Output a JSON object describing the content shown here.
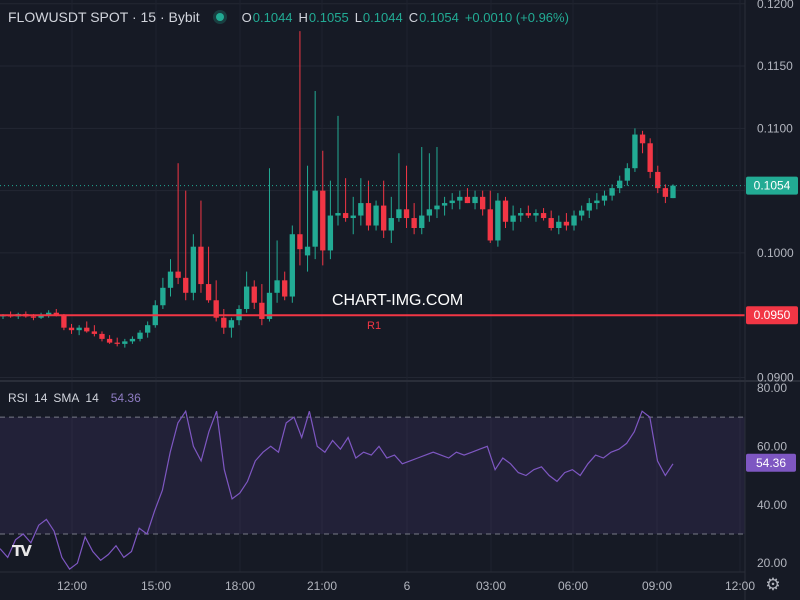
{
  "header": {
    "symbol": "FLOWUSDT SPOT · 15 · Bybit",
    "o_label": "O",
    "o_value": "0.1044",
    "h_label": "H",
    "h_value": "0.1055",
    "l_label": "L",
    "l_value": "0.1044",
    "c_label": "C",
    "c_value": "0.1054",
    "change": "+0.0010 (+0.96%)"
  },
  "watermark": "CHART-IMG.COM",
  "logo_text": "TV",
  "settings_icon": "gear-icon",
  "colors": {
    "up": "#22ab94",
    "down": "#f23645",
    "rsi": "#7e57c2",
    "resistance": "#f23645",
    "background": "#161a25"
  },
  "chart_data": [
    {
      "type": "candlestick",
      "title": "FLOWUSDT SPOT · 15 · Bybit",
      "y_axis": {
        "ticks": [
          "0.1200",
          "0.1150",
          "0.1100",
          "0.1050",
          "0.1000",
          "0.0950",
          "0.0900"
        ],
        "range": [
          0.0898,
          0.1203
        ]
      },
      "x_axis": {
        "ticks": [
          "12:00",
          "15:00",
          "18:00",
          "21:00",
          "6",
          "03:00",
          "06:00",
          "09:00",
          "12:00"
        ]
      },
      "last_price": {
        "value": 0.1054,
        "label": "0.1054"
      },
      "resistance": {
        "value": 0.095,
        "label": "0.0950",
        "name": "R1"
      },
      "candles_ohlc": [
        [
          0.0949,
          0.0951,
          0.0947,
          0.095
        ],
        [
          0.095,
          0.0953,
          0.0948,
          0.0949
        ],
        [
          0.0949,
          0.0952,
          0.0947,
          0.0951
        ],
        [
          0.0951,
          0.0953,
          0.0948,
          0.0949
        ],
        [
          0.0949,
          0.0951,
          0.0946,
          0.0948
        ],
        [
          0.0948,
          0.0952,
          0.0947,
          0.095
        ],
        [
          0.095,
          0.0954,
          0.0948,
          0.0952
        ],
        [
          0.0952,
          0.0955,
          0.0949,
          0.095
        ],
        [
          0.095,
          0.0951,
          0.0938,
          0.094
        ],
        [
          0.094,
          0.0943,
          0.0935,
          0.0938
        ],
        [
          0.0938,
          0.0942,
          0.0934,
          0.094
        ],
        [
          0.094,
          0.0945,
          0.0936,
          0.0937
        ],
        [
          0.0937,
          0.0942,
          0.0933,
          0.0935
        ],
        [
          0.0935,
          0.0937,
          0.0929,
          0.0931
        ],
        [
          0.0931,
          0.0934,
          0.0927,
          0.0928
        ],
        [
          0.0928,
          0.0932,
          0.0925,
          0.0927
        ],
        [
          0.0927,
          0.0931,
          0.0924,
          0.0929
        ],
        [
          0.0929,
          0.0933,
          0.0927,
          0.0931
        ],
        [
          0.0931,
          0.0938,
          0.0929,
          0.0936
        ],
        [
          0.0936,
          0.0945,
          0.0932,
          0.0942
        ],
        [
          0.0942,
          0.0962,
          0.094,
          0.0958
        ],
        [
          0.0958,
          0.098,
          0.0955,
          0.0972
        ],
        [
          0.0972,
          0.0995,
          0.0965,
          0.0985
        ],
        [
          0.0985,
          0.1072,
          0.0975,
          0.098
        ],
        [
          0.098,
          0.105,
          0.0962,
          0.0968
        ],
        [
          0.0968,
          0.1015,
          0.0962,
          0.1005
        ],
        [
          0.1005,
          0.1042,
          0.0968,
          0.0975
        ],
        [
          0.0975,
          0.1005,
          0.096,
          0.0962
        ],
        [
          0.0962,
          0.0978,
          0.0945,
          0.0948
        ],
        [
          0.0948,
          0.0955,
          0.0935,
          0.094
        ],
        [
          0.094,
          0.0948,
          0.0932,
          0.0946
        ],
        [
          0.0946,
          0.0958,
          0.0942,
          0.0955
        ],
        [
          0.0955,
          0.0985,
          0.0952,
          0.0973
        ],
        [
          0.0973,
          0.0978,
          0.0955,
          0.096
        ],
        [
          0.096,
          0.0975,
          0.0942,
          0.0947
        ],
        [
          0.0947,
          0.1068,
          0.0945,
          0.0968
        ],
        [
          0.0968,
          0.101,
          0.096,
          0.0978
        ],
        [
          0.0978,
          0.0985,
          0.0962,
          0.0965
        ],
        [
          0.0965,
          0.1022,
          0.096,
          0.1015
        ],
        [
          0.1015,
          0.1178,
          0.099,
          0.1003
        ],
        [
          0.0998,
          0.107,
          0.0985,
          0.1005
        ],
        [
          0.1005,
          0.113,
          0.0995,
          0.105
        ],
        [
          0.105,
          0.1082,
          0.099,
          0.1002
        ],
        [
          0.1002,
          0.1058,
          0.0995,
          0.103
        ],
        [
          0.103,
          0.111,
          0.1022,
          0.1032
        ],
        [
          0.1032,
          0.106,
          0.1025,
          0.1028
        ],
        [
          0.1028,
          0.1045,
          0.1015,
          0.103
        ],
        [
          0.103,
          0.106,
          0.1022,
          0.104
        ],
        [
          0.104,
          0.1058,
          0.1018,
          0.1022
        ],
        [
          0.1022,
          0.1042,
          0.1018,
          0.1038
        ],
        [
          0.1038,
          0.1058,
          0.1012,
          0.1018
        ],
        [
          0.1018,
          0.1045,
          0.1008,
          0.1028
        ],
        [
          0.1028,
          0.108,
          0.1025,
          0.1035
        ],
        [
          0.1035,
          0.107,
          0.102,
          0.1028
        ],
        [
          0.1028,
          0.104,
          0.1015,
          0.102
        ],
        [
          0.102,
          0.1085,
          0.1015,
          0.103
        ],
        [
          0.103,
          0.108,
          0.1025,
          0.1035
        ],
        [
          0.1035,
          0.1085,
          0.1028,
          0.1038
        ],
        [
          0.1038,
          0.1045,
          0.103,
          0.104
        ],
        [
          0.104,
          0.1048,
          0.1035,
          0.1042
        ],
        [
          0.1042,
          0.105,
          0.1035,
          0.1045
        ],
        [
          0.1045,
          0.1052,
          0.104,
          0.104
        ],
        [
          0.104,
          0.105,
          0.1035,
          0.1045
        ],
        [
          0.1045,
          0.105,
          0.103,
          0.1035
        ],
        [
          0.1035,
          0.105,
          0.1008,
          0.101
        ],
        [
          0.101,
          0.1048,
          0.1005,
          0.1042
        ],
        [
          0.1042,
          0.1045,
          0.102,
          0.1025
        ],
        [
          0.1025,
          0.1038,
          0.1018,
          0.103
        ],
        [
          0.103,
          0.1036,
          0.1025,
          0.1032
        ],
        [
          0.1032,
          0.1038,
          0.1028,
          0.103
        ],
        [
          0.103,
          0.1035,
          0.1025,
          0.1032
        ],
        [
          0.1032,
          0.1036,
          0.1026,
          0.1028
        ],
        [
          0.1028,
          0.1034,
          0.1018,
          0.102
        ],
        [
          0.102,
          0.103,
          0.1015,
          0.1025
        ],
        [
          0.1025,
          0.1032,
          0.1018,
          0.1022
        ],
        [
          0.1022,
          0.1034,
          0.1018,
          0.103
        ],
        [
          0.103,
          0.1038,
          0.1026,
          0.1034
        ],
        [
          0.1034,
          0.1044,
          0.1028,
          0.104
        ],
        [
          0.104,
          0.1048,
          0.1035,
          0.1042
        ],
        [
          0.1042,
          0.105,
          0.1038,
          0.1046
        ],
        [
          0.1046,
          0.1055,
          0.1042,
          0.1052
        ],
        [
          0.1052,
          0.1062,
          0.1048,
          0.1058
        ],
        [
          0.1058,
          0.1072,
          0.1054,
          0.1068
        ],
        [
          0.1068,
          0.11,
          0.1065,
          0.1095
        ],
        [
          0.1095,
          0.1098,
          0.108,
          0.1088
        ],
        [
          0.1088,
          0.1092,
          0.106,
          0.1065
        ],
        [
          0.1065,
          0.107,
          0.1048,
          0.1052
        ],
        [
          0.1052,
          0.1055,
          0.104,
          0.1045
        ],
        [
          0.1044,
          0.1055,
          0.1044,
          0.1054
        ]
      ]
    },
    {
      "type": "line",
      "title": "RSI",
      "header": {
        "name": "RSI",
        "length": "14",
        "sma": "SMA",
        "sma_length": "14",
        "value": "54.36"
      },
      "y_axis": {
        "ticks": [
          "80.00",
          "60.00",
          "40.00",
          "20.00"
        ],
        "range": [
          17,
          82
        ]
      },
      "band": {
        "upper": 70,
        "lower": 30
      },
      "last_value": {
        "value": 54.36,
        "label": "54.36"
      },
      "values": [
        25,
        22,
        28,
        30,
        27,
        33,
        35,
        31,
        22,
        18,
        20,
        29,
        24,
        21,
        23,
        26,
        22,
        24,
        32,
        30,
        38,
        45,
        58,
        68,
        72,
        60,
        55,
        65,
        72,
        52,
        42,
        44,
        48,
        55,
        58,
        60,
        58,
        68,
        70,
        63,
        72,
        60,
        58,
        62,
        59,
        63,
        56,
        58,
        57,
        60,
        56,
        57,
        54,
        55,
        56,
        57,
        58,
        57,
        56,
        58,
        57,
        58,
        59,
        60,
        52,
        56,
        54,
        51,
        50,
        52,
        53,
        50,
        48,
        51,
        52,
        50,
        54,
        57,
        56,
        58,
        59,
        61,
        65,
        72,
        70,
        55,
        50,
        54
      ]
    }
  ]
}
